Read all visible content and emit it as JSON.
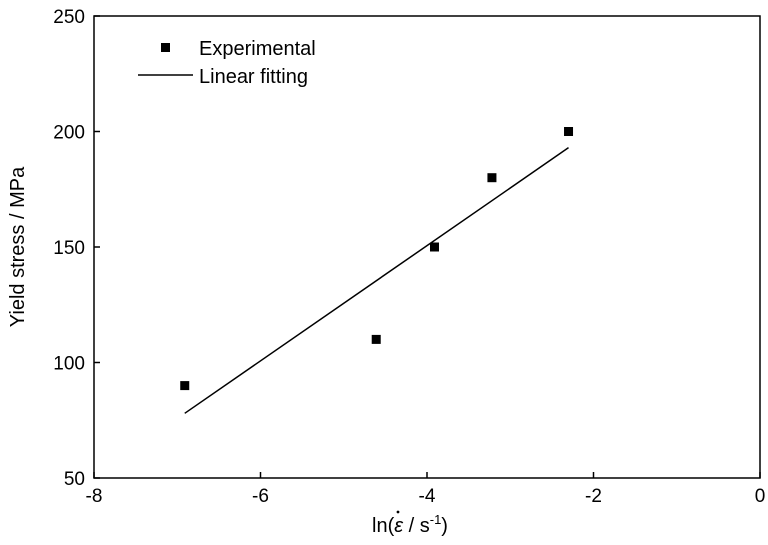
{
  "chart_data": {
    "type": "scatter",
    "xlabel": {
      "prefix": "ln(",
      "symbol": "ε",
      "middle": " / s",
      "superscript": "-1",
      "suffix": ")"
    },
    "ylabel": "Yield stress / MPa",
    "xlim": [
      -8,
      0
    ],
    "ylim": [
      50,
      250
    ],
    "x_ticks": [
      -8,
      -6,
      -4,
      -2,
      0
    ],
    "y_ticks": [
      50,
      100,
      150,
      200,
      250
    ],
    "legend_position": "top-left",
    "grid": false,
    "series": [
      {
        "name": "Experimental",
        "kind": "scatter",
        "marker": "square",
        "color": "#000000",
        "points": [
          {
            "x": -6.91,
            "y": 90
          },
          {
            "x": -4.61,
            "y": 110
          },
          {
            "x": -3.91,
            "y": 150
          },
          {
            "x": -3.22,
            "y": 180
          },
          {
            "x": -2.3,
            "y": 200
          }
        ]
      },
      {
        "name": "Linear fitting",
        "kind": "line",
        "color": "#000000",
        "points": [
          {
            "x": -6.91,
            "y": 78
          },
          {
            "x": -2.3,
            "y": 193
          }
        ]
      }
    ]
  }
}
